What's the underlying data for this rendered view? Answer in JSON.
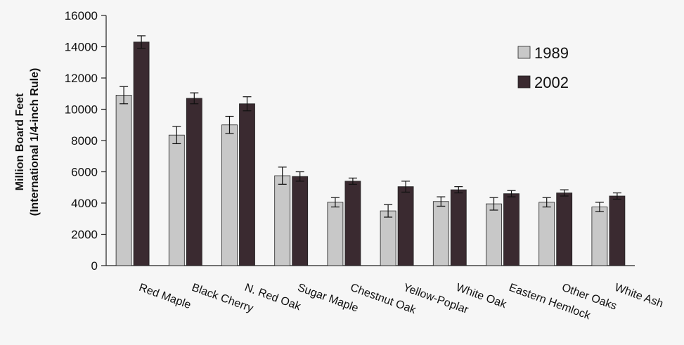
{
  "chart_data": {
    "type": "bar",
    "ylabel_line1": "Million Board Feet",
    "ylabel_line2": "(International 1/4-inch Rule)",
    "ylim": [
      0,
      16000
    ],
    "yticks": [
      0,
      2000,
      4000,
      6000,
      8000,
      10000,
      12000,
      14000,
      16000
    ],
    "grid": false,
    "legend_position": "top-right",
    "categories": [
      "Red Maple",
      "Black Cherry",
      "N. Red Oak",
      "Sugar Maple",
      "Chestnut Oak",
      "Yellow-Poplar",
      "White Oak",
      "Eastern Hemlock",
      "Other Oaks",
      "White Ash"
    ],
    "series": [
      {
        "name": "1989",
        "color": "#c8c8c8",
        "values": [
          10900,
          8350,
          9000,
          5750,
          4050,
          3500,
          4100,
          3950,
          4050,
          3750
        ],
        "errors": [
          550,
          550,
          550,
          550,
          300,
          400,
          300,
          400,
          300,
          300
        ]
      },
      {
        "name": "2002",
        "color": "#3a2a30",
        "values": [
          14300,
          10700,
          10350,
          5700,
          5400,
          5050,
          4850,
          4600,
          4650,
          4450
        ],
        "errors": [
          400,
          350,
          450,
          300,
          200,
          350,
          200,
          200,
          200,
          200
        ]
      }
    ]
  }
}
